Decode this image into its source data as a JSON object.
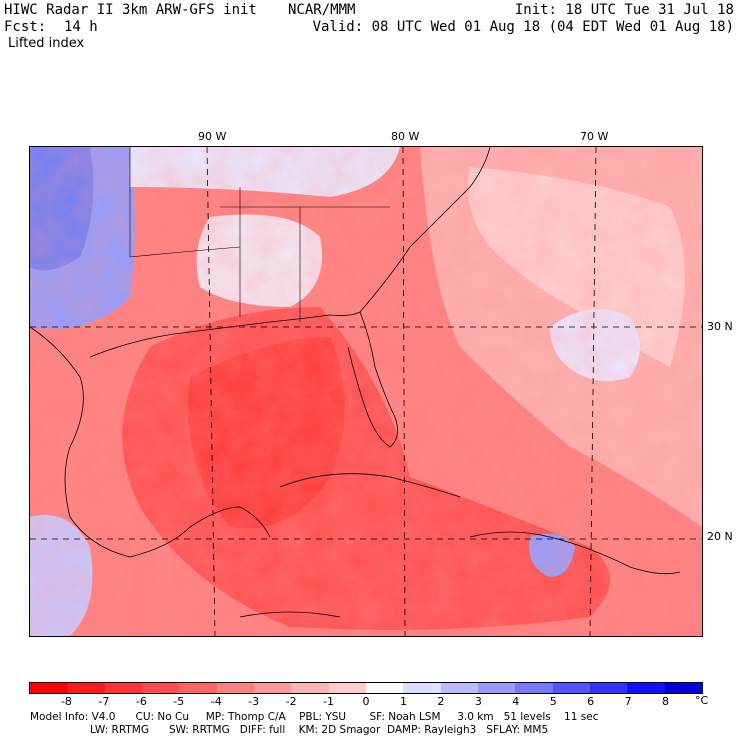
{
  "header": {
    "model_title": "HIWC Radar II 3km ARW-GFS init",
    "org": "NCAR/MMM",
    "init": "Init: 18 UTC Tue 31 Jul 18",
    "fcst_label": "Fcst:",
    "fcst_value": "14 h",
    "valid": "Valid: 08 UTC Wed 01 Aug 18 (04 EDT Wed 01 Aug 18)",
    "field": "Lifted index"
  },
  "map": {
    "lon_labels": [
      "90 W",
      "80 W",
      "70 W"
    ],
    "lat_labels": [
      "30 N",
      "20 N"
    ]
  },
  "colorbar": {
    "ticks": [
      "-8",
      "-7",
      "-6",
      "-5",
      "-4",
      "-3",
      "-2",
      "-1",
      "0",
      "1",
      "2",
      "3",
      "4",
      "5",
      "6",
      "7",
      "8"
    ],
    "unit": "°C",
    "colors": [
      "#ff0000",
      "#ff1a1a",
      "#ff3333",
      "#ff4d4d",
      "#ff6666",
      "#ff8080",
      "#ff9999",
      "#ffb3b3",
      "#ffcccc",
      "#ffffff",
      "#ddddff",
      "#bbbbff",
      "#9999ff",
      "#7777ff",
      "#5555ff",
      "#3333ff",
      "#1111ff",
      "#0000dd"
    ]
  },
  "model_info": {
    "line1": "Model Info: V4.0      CU: No Cu     MP: Thomp C/A    PBL: YSU       SF: Noah LSM     3.0 km   51 levels    11 sec",
    "line2": "LW: RRTMG      SW: RRTMG   DIFF: full    KM: 2D Smagor  DAMP: Rayleigh3   SFLAY: MM5"
  }
}
